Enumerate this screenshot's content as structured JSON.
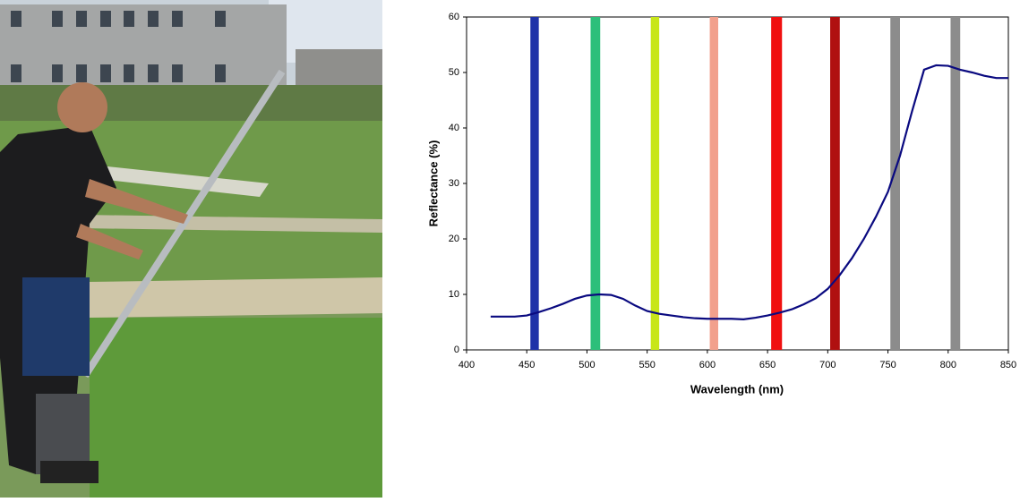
{
  "chart_data": {
    "type": "line",
    "x_label": "Wavelength (nm)",
    "y_label": "Reflectance (%)",
    "x": [
      420,
      430,
      440,
      450,
      460,
      470,
      480,
      490,
      500,
      510,
      520,
      530,
      540,
      550,
      560,
      570,
      580,
      590,
      600,
      610,
      620,
      630,
      640,
      650,
      660,
      670,
      680,
      690,
      700,
      710,
      720,
      730,
      740,
      750,
      760,
      770,
      780,
      790,
      800,
      810,
      820,
      830,
      840,
      850
    ],
    "color": "#0a0a80",
    "values": [
      6.0,
      6.0,
      6.0,
      6.2,
      6.8,
      7.5,
      8.3,
      9.2,
      9.8,
      10.0,
      9.9,
      9.2,
      8.0,
      7.0,
      6.5,
      6.2,
      5.9,
      5.7,
      5.6,
      5.6,
      5.6,
      5.5,
      5.8,
      6.2,
      6.7,
      7.3,
      8.2,
      9.3,
      11.0,
      13.5,
      16.5,
      20.0,
      24.0,
      28.5,
      35.0,
      43.0,
      50.5,
      51.3,
      51.2,
      50.5,
      50.0,
      49.4,
      49.0,
      49.0
    ],
    "bands": [
      {
        "range": [
          453,
          460
        ],
        "color": "#1f32a8"
      },
      {
        "range": [
          503,
          511
        ],
        "color": "#2dbf7a"
      },
      {
        "range": [
          553,
          560
        ],
        "color": "#c8e619"
      },
      {
        "range": [
          602,
          609
        ],
        "color": "#f2a08c"
      },
      {
        "range": [
          653,
          662
        ],
        "color": "#f01010"
      },
      {
        "range": [
          702,
          710
        ],
        "color": "#b01010"
      },
      {
        "range": [
          752,
          760
        ],
        "color": "#8c8c8c"
      },
      {
        "range": [
          802,
          810
        ],
        "color": "#8c8c8c"
      }
    ],
    "xlim": [
      400,
      850
    ],
    "xticks": [
      400,
      450,
      500,
      550,
      600,
      650,
      700,
      750,
      800,
      850
    ],
    "ylim": [
      0,
      60
    ],
    "yticks": [
      0,
      10,
      20,
      30,
      40,
      50,
      60
    ]
  }
}
